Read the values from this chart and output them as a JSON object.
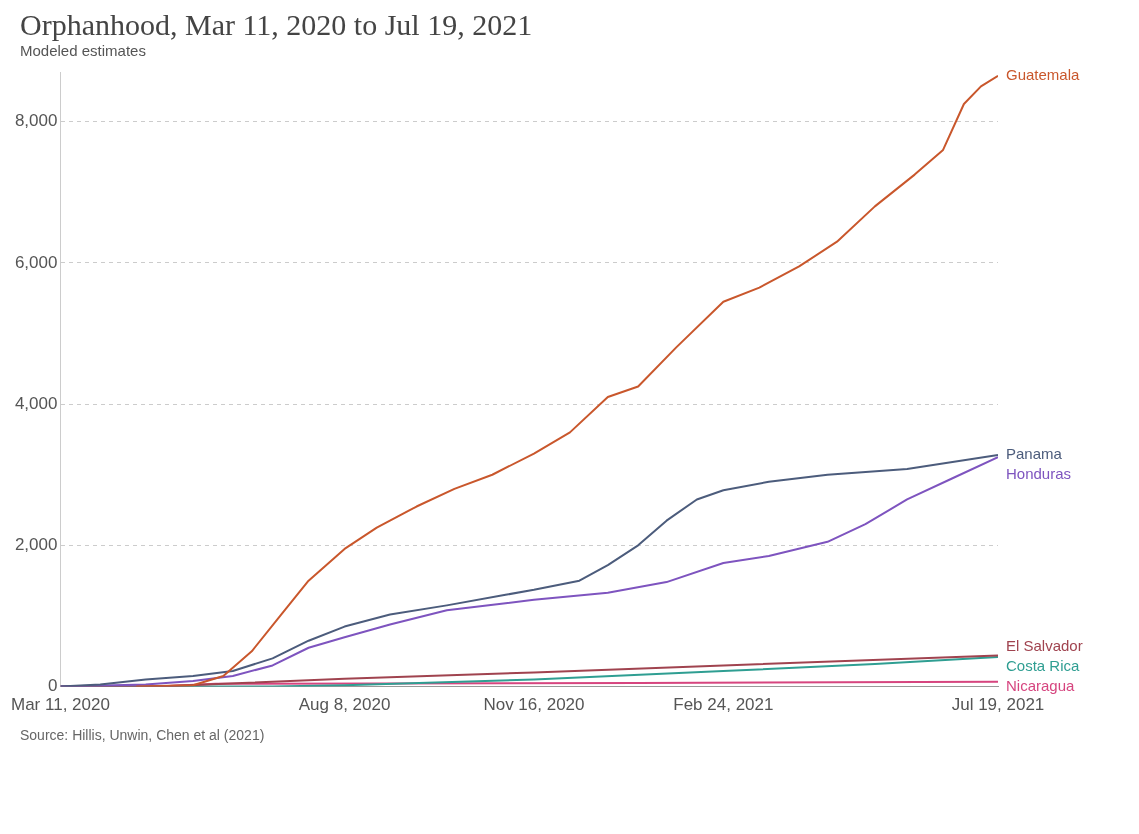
{
  "chart_data": {
    "type": "line",
    "title": "Orphanhood, Mar 11, 2020 to Jul 19, 2021",
    "subtitle": "Modeled estimates",
    "annotations": [
      "Source: Hillis, Unwin, Chen et al (2021)"
    ],
    "xlim": [
      "2020-03-11",
      "2021-07-19"
    ],
    "xticks": [
      {
        "value": "2020-03-11",
        "label": "Mar 11, 2020"
      },
      {
        "value": "2020-08-08",
        "label": "Aug 8, 2020"
      },
      {
        "value": "2020-11-16",
        "label": "Nov 16, 2020"
      },
      {
        "value": "2021-02-24",
        "label": "Feb 24, 2021"
      },
      {
        "value": "2021-07-19",
        "label": "Jul 19, 2021"
      }
    ],
    "ylim": [
      0,
      8700
    ],
    "yticks": [
      0,
      {
        "value": 2000,
        "label": "2,000"
      },
      {
        "value": 4000,
        "label": "4,000"
      },
      {
        "value": 6000,
        "label": "6,000"
      },
      {
        "value": 8000,
        "label": "8,000"
      }
    ],
    "grid": "y",
    "legend": false,
    "marker": "none",
    "line_style": "solid",
    "series": [
      {
        "name": "Guatemala",
        "color": "#c9572c",
        "x": [
          "2020-04-20",
          "2020-05-20",
          "2020-06-05",
          "2020-06-20",
          "2020-07-05",
          "2020-07-20",
          "2020-08-08",
          "2020-08-25",
          "2020-09-15",
          "2020-10-05",
          "2020-10-25",
          "2020-11-16",
          "2020-12-05",
          "2020-12-25",
          "2021-01-10",
          "2021-01-30",
          "2021-02-24",
          "2021-03-15",
          "2021-04-05",
          "2021-04-25",
          "2021-05-15",
          "2021-06-05",
          "2021-06-20",
          "2021-07-01",
          "2021-07-10",
          "2021-07-19"
        ],
        "values": [
          0,
          20,
          150,
          500,
          1000,
          1500,
          1950,
          2250,
          2550,
          2800,
          3000,
          3300,
          3600,
          4100,
          4250,
          4800,
          5450,
          5650,
          5950,
          6300,
          6800,
          7250,
          7600,
          8250,
          8500,
          8650
        ]
      },
      {
        "name": "Panama",
        "color": "#4c5c7c",
        "x": [
          "2020-03-11",
          "2020-04-01",
          "2020-04-25",
          "2020-05-20",
          "2020-06-10",
          "2020-07-01",
          "2020-07-20",
          "2020-08-08",
          "2020-09-01",
          "2020-10-01",
          "2020-11-01",
          "2020-11-16",
          "2020-12-10",
          "2020-12-25",
          "2021-01-10",
          "2021-01-25",
          "2021-02-10",
          "2021-02-24",
          "2021-03-20",
          "2021-04-20",
          "2021-06-01",
          "2021-07-19"
        ],
        "values": [
          0,
          30,
          100,
          150,
          220,
          400,
          650,
          850,
          1020,
          1150,
          1300,
          1370,
          1500,
          1720,
          2000,
          2350,
          2650,
          2780,
          2900,
          3000,
          3080,
          3280
        ]
      },
      {
        "name": "Honduras",
        "color": "#7e54bf",
        "x": [
          "2020-03-11",
          "2020-04-25",
          "2020-05-20",
          "2020-06-10",
          "2020-07-01",
          "2020-07-20",
          "2020-08-08",
          "2020-09-01",
          "2020-10-01",
          "2020-11-01",
          "2020-11-16",
          "2020-12-25",
          "2021-01-25",
          "2021-02-24",
          "2021-03-20",
          "2021-04-20",
          "2021-05-10",
          "2021-06-01",
          "2021-06-25",
          "2021-07-19"
        ],
        "values": [
          0,
          30,
          80,
          150,
          300,
          550,
          700,
          880,
          1080,
          1180,
          1230,
          1330,
          1480,
          1750,
          1850,
          2050,
          2300,
          2650,
          2950,
          3250
        ]
      },
      {
        "name": "El Salvador",
        "color": "#a0434f",
        "x": [
          "2020-03-11",
          "2020-05-01",
          "2020-06-15",
          "2020-08-08",
          "2020-11-16",
          "2021-02-24",
          "2021-07-19"
        ],
        "values": [
          0,
          0,
          50,
          110,
          200,
          300,
          440
        ]
      },
      {
        "name": "Costa Rica",
        "color": "#2f9e92",
        "x": [
          "2020-03-11",
          "2020-07-01",
          "2020-08-08",
          "2020-11-16",
          "2021-02-24",
          "2021-05-15",
          "2021-07-19"
        ],
        "values": [
          0,
          0,
          20,
          100,
          220,
          320,
          420
        ]
      },
      {
        "name": "Nicaragua",
        "color": "#d6457f",
        "x": [
          "2020-03-11",
          "2020-05-01",
          "2020-06-01",
          "2021-01-10",
          "2021-07-19"
        ],
        "values": [
          0,
          0,
          40,
          50,
          70
        ]
      }
    ]
  }
}
